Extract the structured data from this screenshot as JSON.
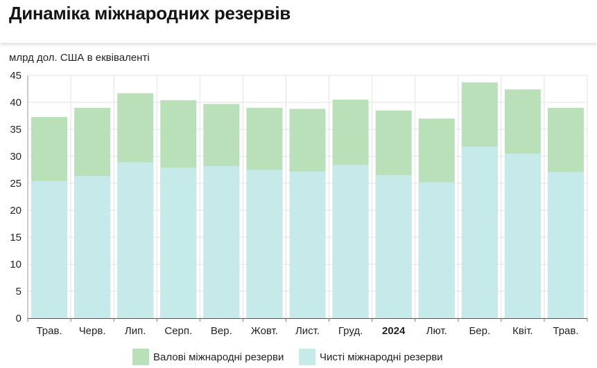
{
  "title": "Динаміка міжнародних резервів",
  "unit_label": "млрд дол. США в еквіваленті",
  "colors": {
    "gross": "#b9e0b9",
    "net": "#c6e9e9",
    "grid": "#e2e2e2",
    "axis": "#9a9a9a"
  },
  "chart_data": {
    "type": "bar",
    "stacked_overlay": true,
    "categories": [
      "Трав.",
      "Черв.",
      "Лип.",
      "Серп.",
      "Вер.",
      "Жовт.",
      "Лист.",
      "Груд.",
      "2024",
      "Лют.",
      "Бер.",
      "Квіт.",
      "Трав."
    ],
    "bold_categories": [
      "2024"
    ],
    "series": [
      {
        "name": "Валові міжнародні резерви",
        "values": [
          37.3,
          39.0,
          41.7,
          40.4,
          39.7,
          39.0,
          38.8,
          40.5,
          38.5,
          37.0,
          43.7,
          42.4,
          39.0
        ]
      },
      {
        "name": "Чисті міжнародні резерви",
        "values": [
          25.4,
          26.4,
          28.9,
          27.9,
          28.2,
          27.5,
          27.2,
          28.4,
          26.5,
          25.2,
          31.8,
          30.5,
          27.1
        ]
      }
    ],
    "ylim": [
      0,
      45
    ],
    "yticks": [
      0,
      5,
      10,
      15,
      20,
      25,
      30,
      35,
      40,
      45
    ],
    "grid": true,
    "legend_position": "bottom-center"
  }
}
